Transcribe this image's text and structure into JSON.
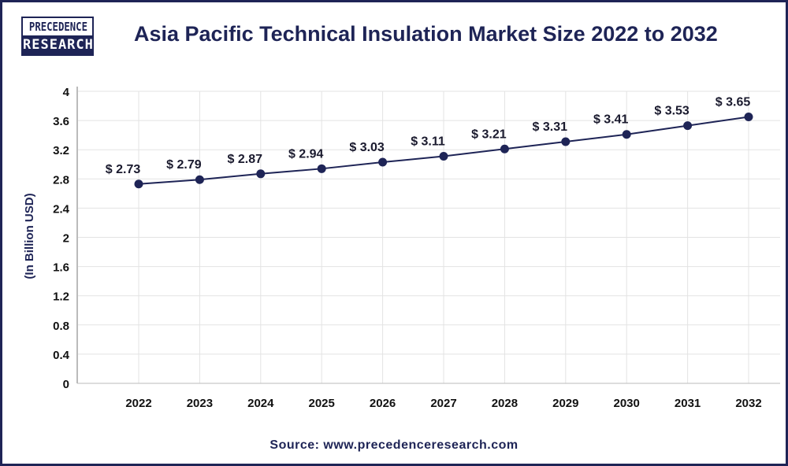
{
  "logo": {
    "line1": "PRECEDENCE",
    "line2": "RESEARCH"
  },
  "source": "Source: www.precedenceresearch.com",
  "colors": {
    "line": "#1e2456",
    "grid": "#e3e3e3",
    "text": "#1e2456"
  },
  "chart_data": {
    "type": "line",
    "title": "Asia Pacific Technical Insulation Market Size 2022 to 2032",
    "xlabel": "",
    "ylabel": "(In Billion USD)",
    "ylim": [
      0,
      4
    ],
    "yticks": [
      "0",
      "0.4",
      "0.8",
      "1.2",
      "1.6",
      "2",
      "2.4",
      "2.8",
      "3.2",
      "3.6",
      "4"
    ],
    "grid": true,
    "categories": [
      "2022",
      "2023",
      "2024",
      "2025",
      "2026",
      "2027",
      "2028",
      "2029",
      "2030",
      "2031",
      "2032"
    ],
    "values": [
      2.73,
      2.79,
      2.87,
      2.94,
      3.03,
      3.11,
      3.21,
      3.31,
      3.41,
      3.53,
      3.65
    ],
    "labels": [
      "$ 2.73",
      "$ 2.79",
      "$ 2.87",
      "$ 2.94",
      "$ 3.03",
      "$ 3.11",
      "$ 3.21",
      "$ 3.31",
      "$ 3.41",
      "$ 3.53",
      "$ 3.65"
    ]
  }
}
